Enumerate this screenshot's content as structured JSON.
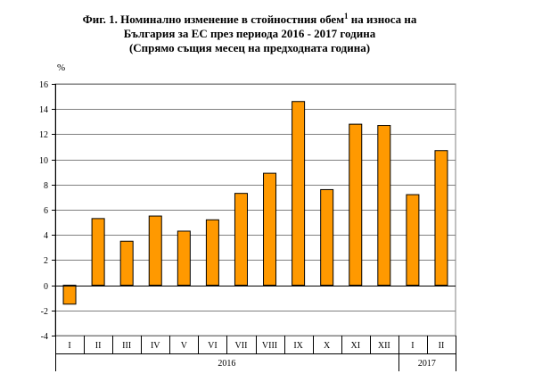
{
  "title": {
    "line1": "Фиг. 1. Номинално изменение в стойностния обем",
    "footnote_mark": "1",
    "line1_end": " на износа на",
    "line2": "България за ЕС през периода 2016 - 2017 година",
    "line3": "(Спрямо същия месец на предходната година)"
  },
  "chart_data": {
    "type": "bar",
    "ylabel": "%",
    "ylim": [
      -4,
      16
    ],
    "yticks": [
      -4,
      -2,
      0,
      2,
      4,
      6,
      8,
      10,
      12,
      14,
      16
    ],
    "grid": true,
    "bar_color": "#FF9900",
    "categories": [
      "I",
      "II",
      "III",
      "IV",
      "V",
      "VI",
      "VII",
      "VIII",
      "IX",
      "X",
      "XI",
      "XII",
      "I",
      "II"
    ],
    "values": [
      -1.5,
      5.3,
      3.5,
      5.5,
      4.3,
      5.2,
      7.3,
      8.9,
      14.6,
      7.6,
      12.8,
      12.7,
      7.2,
      10.7
    ],
    "groups": [
      {
        "label": "2016",
        "count": 12
      },
      {
        "label": "2017",
        "count": 2
      }
    ]
  }
}
